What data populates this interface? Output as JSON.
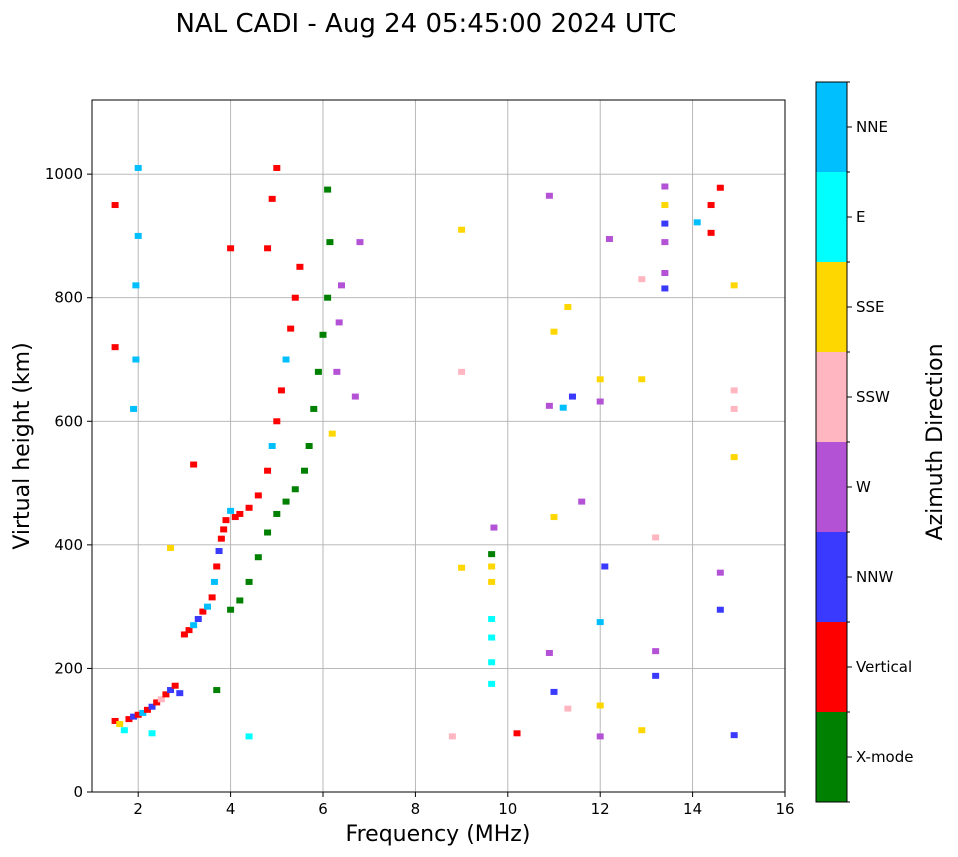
{
  "chart_data": {
    "type": "scatter",
    "title": "NAL CADI - Aug 24 05:45:00 2024 UTC",
    "xlabel": "Frequency (MHz)",
    "ylabel": "Virtual height (km)",
    "xlim": [
      1,
      16
    ],
    "ylim": [
      0,
      1120
    ],
    "xticks": [
      2,
      4,
      6,
      8,
      10,
      12,
      14,
      16
    ],
    "yticks": [
      0,
      200,
      400,
      600,
      800,
      1000
    ],
    "grid": true,
    "colorbar": {
      "title": "Azimuth Direction",
      "categories": [
        {
          "name": "X-mode",
          "color": "#008000"
        },
        {
          "name": "Vertical",
          "color": "#ff0000"
        },
        {
          "name": "NNW",
          "color": "#3a3aff"
        },
        {
          "name": "W",
          "color": "#b452d6"
        },
        {
          "name": "SSW",
          "color": "#ffb6c1"
        },
        {
          "name": "SSE",
          "color": "#ffd700"
        },
        {
          "name": "E",
          "color": "#00ffff"
        },
        {
          "name": "NNE",
          "color": "#00bfff"
        }
      ]
    },
    "echoes": [
      {
        "f": 1.5,
        "h": 115,
        "c": "Vertical"
      },
      {
        "f": 1.6,
        "h": 110,
        "c": "SSE"
      },
      {
        "f": 1.7,
        "h": 100,
        "c": "E"
      },
      {
        "f": 1.8,
        "h": 118,
        "c": "Vertical"
      },
      {
        "f": 1.9,
        "h": 122,
        "c": "NNW"
      },
      {
        "f": 2.0,
        "h": 125,
        "c": "Vertical"
      },
      {
        "f": 2.1,
        "h": 128,
        "c": "NNE"
      },
      {
        "f": 2.2,
        "h": 133,
        "c": "Vertical"
      },
      {
        "f": 2.3,
        "h": 138,
        "c": "NNW"
      },
      {
        "f": 2.4,
        "h": 145,
        "c": "Vertical"
      },
      {
        "f": 2.5,
        "h": 150,
        "c": "SSW"
      },
      {
        "f": 2.6,
        "h": 158,
        "c": "Vertical"
      },
      {
        "f": 2.7,
        "h": 165,
        "c": "NNW"
      },
      {
        "f": 2.8,
        "h": 172,
        "c": "Vertical"
      },
      {
        "f": 2.9,
        "h": 160,
        "c": "NNW"
      },
      {
        "f": 3.0,
        "h": 255,
        "c": "Vertical"
      },
      {
        "f": 3.1,
        "h": 262,
        "c": "Vertical"
      },
      {
        "f": 3.2,
        "h": 270,
        "c": "NNE"
      },
      {
        "f": 3.3,
        "h": 280,
        "c": "NNW"
      },
      {
        "f": 3.4,
        "h": 292,
        "c": "Vertical"
      },
      {
        "f": 3.5,
        "h": 300,
        "c": "NNE"
      },
      {
        "f": 3.6,
        "h": 315,
        "c": "Vertical"
      },
      {
        "f": 3.65,
        "h": 340,
        "c": "NNE"
      },
      {
        "f": 3.7,
        "h": 365,
        "c": "Vertical"
      },
      {
        "f": 3.75,
        "h": 390,
        "c": "NNW"
      },
      {
        "f": 3.8,
        "h": 410,
        "c": "Vertical"
      },
      {
        "f": 3.85,
        "h": 425,
        "c": "Vertical"
      },
      {
        "f": 3.9,
        "h": 440,
        "c": "Vertical"
      },
      {
        "f": 4.0,
        "h": 455,
        "c": "NNE"
      },
      {
        "f": 4.1,
        "h": 445,
        "c": "Vertical"
      },
      {
        "f": 4.2,
        "h": 450,
        "c": "Vertical"
      },
      {
        "f": 4.4,
        "h": 460,
        "c": "Vertical"
      },
      {
        "f": 4.6,
        "h": 480,
        "c": "Vertical"
      },
      {
        "f": 4.8,
        "h": 520,
        "c": "Vertical"
      },
      {
        "f": 4.9,
        "h": 560,
        "c": "NNE"
      },
      {
        "f": 5.0,
        "h": 600,
        "c": "Vertical"
      },
      {
        "f": 5.1,
        "h": 650,
        "c": "Vertical"
      },
      {
        "f": 5.2,
        "h": 700,
        "c": "NNE"
      },
      {
        "f": 5.3,
        "h": 750,
        "c": "Vertical"
      },
      {
        "f": 5.4,
        "h": 800,
        "c": "Vertical"
      },
      {
        "f": 5.5,
        "h": 850,
        "c": "Vertical"
      },
      {
        "f": 4.8,
        "h": 880,
        "c": "Vertical"
      },
      {
        "f": 4.9,
        "h": 960,
        "c": "Vertical"
      },
      {
        "f": 5.0,
        "h": 1010,
        "c": "Vertical"
      },
      {
        "f": 4.0,
        "h": 295,
        "c": "X-mode"
      },
      {
        "f": 4.2,
        "h": 310,
        "c": "X-mode"
      },
      {
        "f": 4.4,
        "h": 340,
        "c": "X-mode"
      },
      {
        "f": 4.6,
        "h": 380,
        "c": "X-mode"
      },
      {
        "f": 4.8,
        "h": 420,
        "c": "X-mode"
      },
      {
        "f": 5.0,
        "h": 450,
        "c": "X-mode"
      },
      {
        "f": 5.2,
        "h": 470,
        "c": "X-mode"
      },
      {
        "f": 5.4,
        "h": 490,
        "c": "X-mode"
      },
      {
        "f": 5.6,
        "h": 520,
        "c": "X-mode"
      },
      {
        "f": 5.7,
        "h": 560,
        "c": "X-mode"
      },
      {
        "f": 5.8,
        "h": 620,
        "c": "X-mode"
      },
      {
        "f": 5.9,
        "h": 680,
        "c": "X-mode"
      },
      {
        "f": 6.0,
        "h": 740,
        "c": "X-mode"
      },
      {
        "f": 6.1,
        "h": 800,
        "c": "X-mode"
      },
      {
        "f": 6.15,
        "h": 890,
        "c": "X-mode"
      },
      {
        "f": 6.1,
        "h": 975,
        "c": "X-mode"
      },
      {
        "f": 6.3,
        "h": 680,
        "c": "W"
      },
      {
        "f": 6.35,
        "h": 760,
        "c": "W"
      },
      {
        "f": 6.4,
        "h": 820,
        "c": "W"
      },
      {
        "f": 6.2,
        "h": 580,
        "c": "SSE"
      },
      {
        "f": 6.8,
        "h": 890,
        "c": "W"
      },
      {
        "f": 6.7,
        "h": 640,
        "c": "W"
      },
      {
        "f": 1.9,
        "h": 620,
        "c": "NNE"
      },
      {
        "f": 1.95,
        "h": 700,
        "c": "NNE"
      },
      {
        "f": 1.95,
        "h": 820,
        "c": "NNE"
      },
      {
        "f": 2.0,
        "h": 900,
        "c": "NNE"
      },
      {
        "f": 2.0,
        "h": 1010,
        "c": "NNE"
      },
      {
        "f": 1.5,
        "h": 950,
        "c": "Vertical"
      },
      {
        "f": 1.5,
        "h": 720,
        "c": "Vertical"
      },
      {
        "f": 3.2,
        "h": 530,
        "c": "Vertical"
      },
      {
        "f": 2.7,
        "h": 395,
        "c": "SSE"
      },
      {
        "f": 4.0,
        "h": 880,
        "c": "Vertical"
      },
      {
        "f": 4.4,
        "h": 90,
        "c": "E"
      },
      {
        "f": 2.3,
        "h": 95,
        "c": "E"
      },
      {
        "f": 3.7,
        "h": 165,
        "c": "X-mode"
      },
      {
        "f": 9.65,
        "h": 175,
        "c": "E"
      },
      {
        "f": 9.65,
        "h": 210,
        "c": "E"
      },
      {
        "f": 9.65,
        "h": 250,
        "c": "E"
      },
      {
        "f": 9.65,
        "h": 280,
        "c": "E"
      },
      {
        "f": 9.65,
        "h": 340,
        "c": "SSE"
      },
      {
        "f": 9.65,
        "h": 365,
        "c": "SSE"
      },
      {
        "f": 9.65,
        "h": 385,
        "c": "X-mode"
      },
      {
        "f": 9.0,
        "h": 910,
        "c": "SSE"
      },
      {
        "f": 9.0,
        "h": 680,
        "c": "SSW"
      },
      {
        "f": 9.0,
        "h": 363,
        "c": "SSE"
      },
      {
        "f": 8.8,
        "h": 90,
        "c": "SSW"
      },
      {
        "f": 10.2,
        "h": 95,
        "c": "Vertical"
      },
      {
        "f": 9.7,
        "h": 428,
        "c": "W"
      },
      {
        "f": 10.9,
        "h": 965,
        "c": "W"
      },
      {
        "f": 10.9,
        "h": 625,
        "c": "W"
      },
      {
        "f": 10.9,
        "h": 225,
        "c": "W"
      },
      {
        "f": 11.2,
        "h": 622,
        "c": "NNE"
      },
      {
        "f": 11.4,
        "h": 640,
        "c": "NNW"
      },
      {
        "f": 11.6,
        "h": 470,
        "c": "W"
      },
      {
        "f": 11.3,
        "h": 785,
        "c": "SSE"
      },
      {
        "f": 11.0,
        "h": 745,
        "c": "SSE"
      },
      {
        "f": 11.0,
        "h": 445,
        "c": "SSE"
      },
      {
        "f": 11.3,
        "h": 135,
        "c": "SSW"
      },
      {
        "f": 11.0,
        "h": 162,
        "c": "NNW"
      },
      {
        "f": 12.0,
        "h": 632,
        "c": "W"
      },
      {
        "f": 12.0,
        "h": 668,
        "c": "SSE"
      },
      {
        "f": 12.2,
        "h": 895,
        "c": "W"
      },
      {
        "f": 12.1,
        "h": 365,
        "c": "NNW"
      },
      {
        "f": 12.0,
        "h": 275,
        "c": "NNE"
      },
      {
        "f": 12.0,
        "h": 140,
        "c": "SSE"
      },
      {
        "f": 12.0,
        "h": 90,
        "c": "W"
      },
      {
        "f": 12.9,
        "h": 668,
        "c": "SSE"
      },
      {
        "f": 12.9,
        "h": 830,
        "c": "SSW"
      },
      {
        "f": 12.9,
        "h": 100,
        "c": "SSE"
      },
      {
        "f": 13.2,
        "h": 228,
        "c": "W"
      },
      {
        "f": 13.2,
        "h": 188,
        "c": "NNW"
      },
      {
        "f": 13.2,
        "h": 412,
        "c": "SSW"
      },
      {
        "f": 13.4,
        "h": 815,
        "c": "NNW"
      },
      {
        "f": 13.4,
        "h": 840,
        "c": "W"
      },
      {
        "f": 13.4,
        "h": 890,
        "c": "W"
      },
      {
        "f": 13.4,
        "h": 920,
        "c": "NNW"
      },
      {
        "f": 13.4,
        "h": 950,
        "c": "SSE"
      },
      {
        "f": 13.4,
        "h": 980,
        "c": "W"
      },
      {
        "f": 14.1,
        "h": 922,
        "c": "NNE"
      },
      {
        "f": 14.4,
        "h": 950,
        "c": "Vertical"
      },
      {
        "f": 14.6,
        "h": 978,
        "c": "Vertical"
      },
      {
        "f": 14.4,
        "h": 905,
        "c": "Vertical"
      },
      {
        "f": 14.6,
        "h": 355,
        "c": "W"
      },
      {
        "f": 14.6,
        "h": 295,
        "c": "NNW"
      },
      {
        "f": 14.9,
        "h": 820,
        "c": "SSE"
      },
      {
        "f": 14.9,
        "h": 650,
        "c": "SSW"
      },
      {
        "f": 14.9,
        "h": 620,
        "c": "SSW"
      },
      {
        "f": 14.9,
        "h": 542,
        "c": "SSE"
      },
      {
        "f": 14.9,
        "h": 92,
        "c": "NNW"
      }
    ]
  }
}
